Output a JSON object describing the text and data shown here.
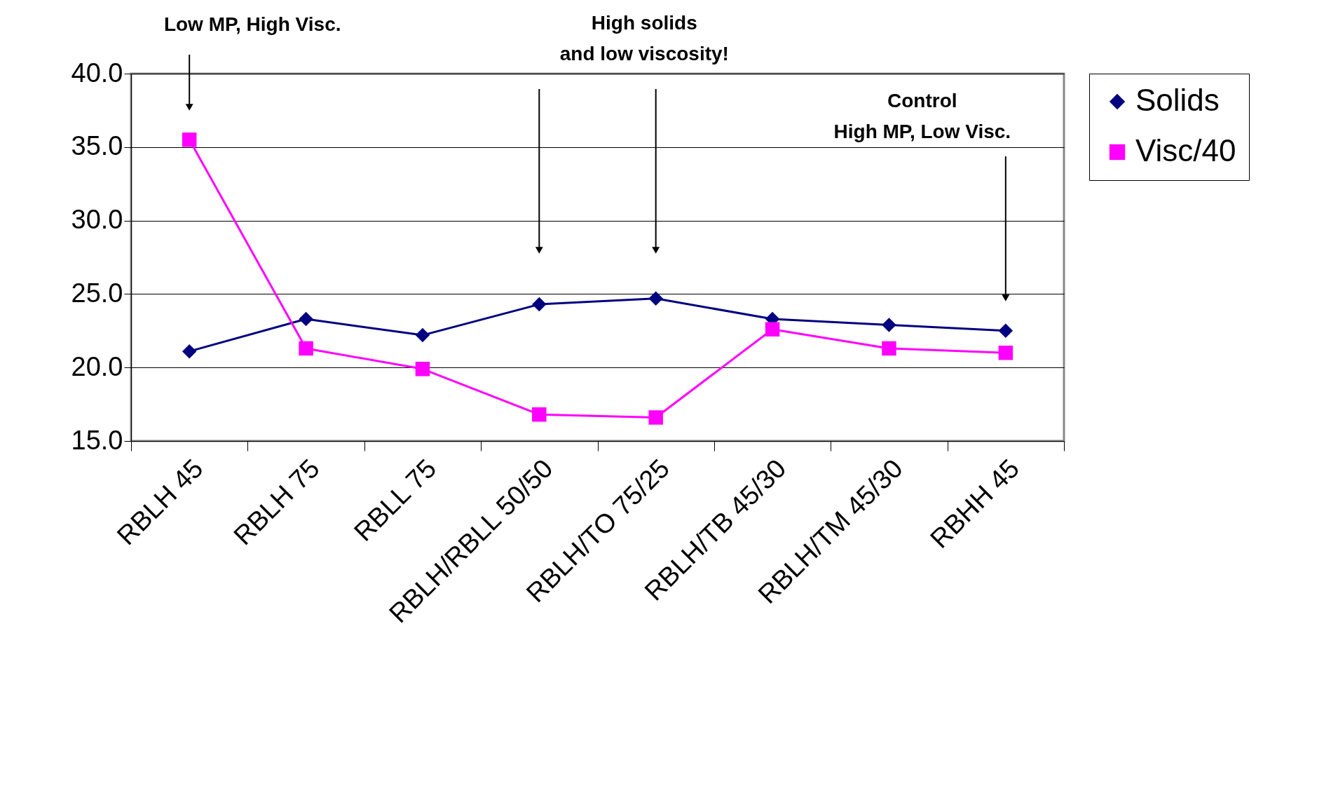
{
  "chart_data": {
    "type": "line",
    "categories": [
      "RBLH 45",
      "RBLH 75",
      "RBLL 75",
      "RBLH/RBLL 50/50",
      "RBLH/TO 75/25",
      "RBLH/TB 45/30",
      "RBLH/TM 45/30",
      "RBHH 45"
    ],
    "series": [
      {
        "name": "Solids",
        "color": "#000080",
        "marker": "diamond",
        "values": [
          21.1,
          23.3,
          22.2,
          24.3,
          24.7,
          23.3,
          22.9,
          22.5
        ]
      },
      {
        "name": "Visc/40",
        "color": "#ff00ff",
        "marker": "square",
        "values": [
          35.5,
          21.3,
          19.9,
          16.8,
          16.6,
          22.6,
          21.3,
          21.0
        ]
      }
    ],
    "ylim": [
      15,
      40
    ],
    "yticks": [
      {
        "value": 15,
        "label": "15.0"
      },
      {
        "value": 20,
        "label": "20.0"
      },
      {
        "value": 25,
        "label": "25.0"
      },
      {
        "value": 30,
        "label": "30.0"
      },
      {
        "value": 35,
        "label": "35.0"
      },
      {
        "value": 40,
        "label": "40.0"
      }
    ],
    "grid": "y",
    "legend": "right",
    "annotations": [
      "Low MP, High Visc.",
      "High solids\nand low viscosity!",
      "Control\nHigh MP, Low Visc."
    ]
  }
}
